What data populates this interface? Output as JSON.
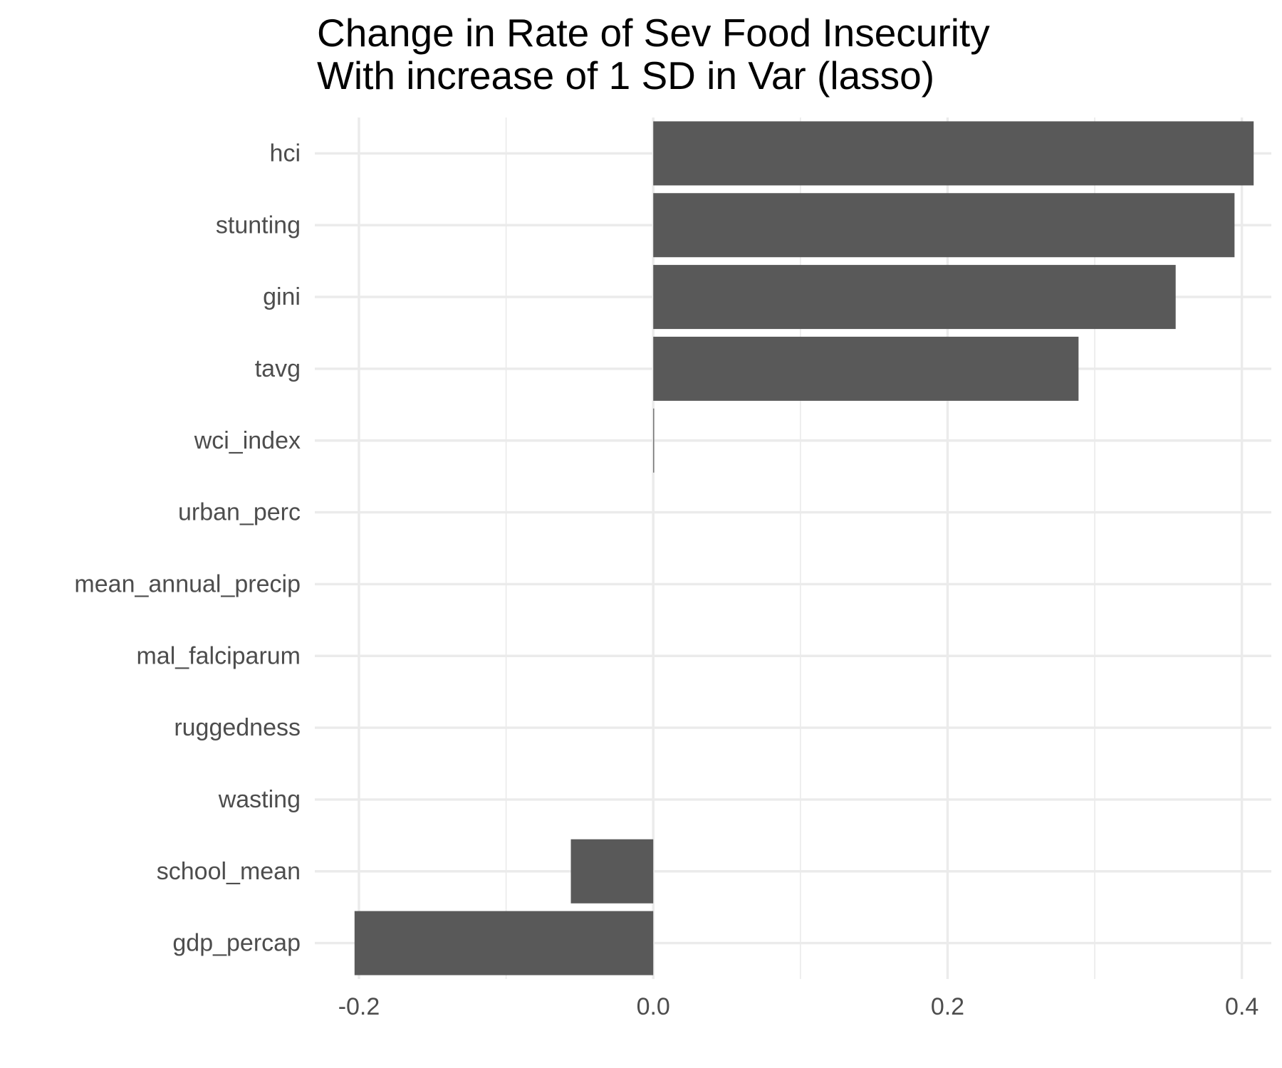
{
  "chart_data": {
    "type": "bar",
    "orientation": "horizontal",
    "title_lines": [
      "Change in Rate of Sev Food Insecurity",
      "With increase of 1 SD in Var (lasso)"
    ],
    "xlabel": "",
    "ylabel": "",
    "categories": [
      "hci",
      "stunting",
      "gini",
      "tavg",
      "wci_index",
      "urban_perc",
      "mean_annual_precip",
      "mal_falciparum",
      "ruggedness",
      "wasting",
      "school_mean",
      "gdp_percap"
    ],
    "values": [
      0.408,
      0.395,
      0.355,
      0.289,
      0.0003,
      0,
      0,
      0,
      0,
      0,
      -0.056,
      -0.203
    ],
    "xlim": [
      -0.23,
      0.42
    ],
    "x_ticks": [
      -0.2,
      0.0,
      0.2,
      0.4
    ],
    "x_tick_labels": [
      "-0.2",
      "0.0",
      "0.2",
      "0.4"
    ],
    "grid": true,
    "legend": "none",
    "bar_color": "#595959",
    "grid_color": "#ebebeb"
  }
}
